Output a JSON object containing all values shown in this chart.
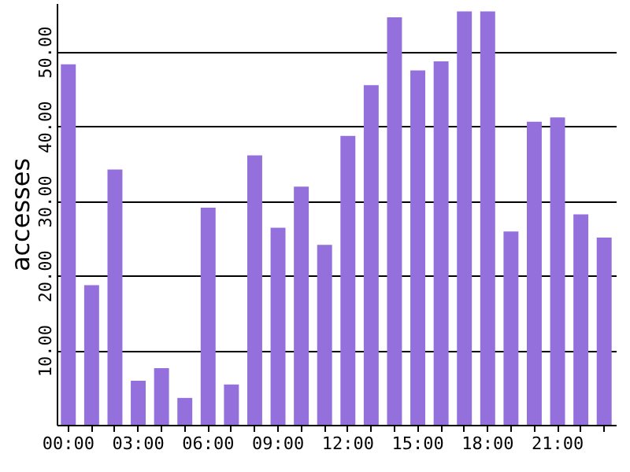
{
  "chart_data": {
    "type": "bar",
    "ylabel": "accesses",
    "categories": [
      "00:00",
      null,
      null,
      "03:00",
      null,
      null,
      "06:00",
      null,
      null,
      "09:00",
      null,
      null,
      "12:00",
      null,
      null,
      "15:00",
      null,
      null,
      "18:00",
      null,
      null,
      "21:00",
      null,
      null
    ],
    "values": [
      48.3,
      18.7,
      34.2,
      5.9,
      7.6,
      3.6,
      29.1,
      5.4,
      36.1,
      26.4,
      31.9,
      24.1,
      38.7,
      45.5,
      54.6,
      47.5,
      48.7,
      55.4,
      55.4,
      25.9,
      40.6,
      41.2,
      28.2,
      25.1
    ],
    "color": "#9370db",
    "ylim": [
      0,
      56.5
    ],
    "yticks": [
      {
        "value": 10,
        "label": "10.00"
      },
      {
        "value": 20,
        "label": "20.00"
      },
      {
        "value": 30,
        "label": "30.00"
      },
      {
        "value": 40,
        "label": "40.00"
      },
      {
        "value": 50,
        "label": "50.00"
      }
    ],
    "grid": "y"
  }
}
